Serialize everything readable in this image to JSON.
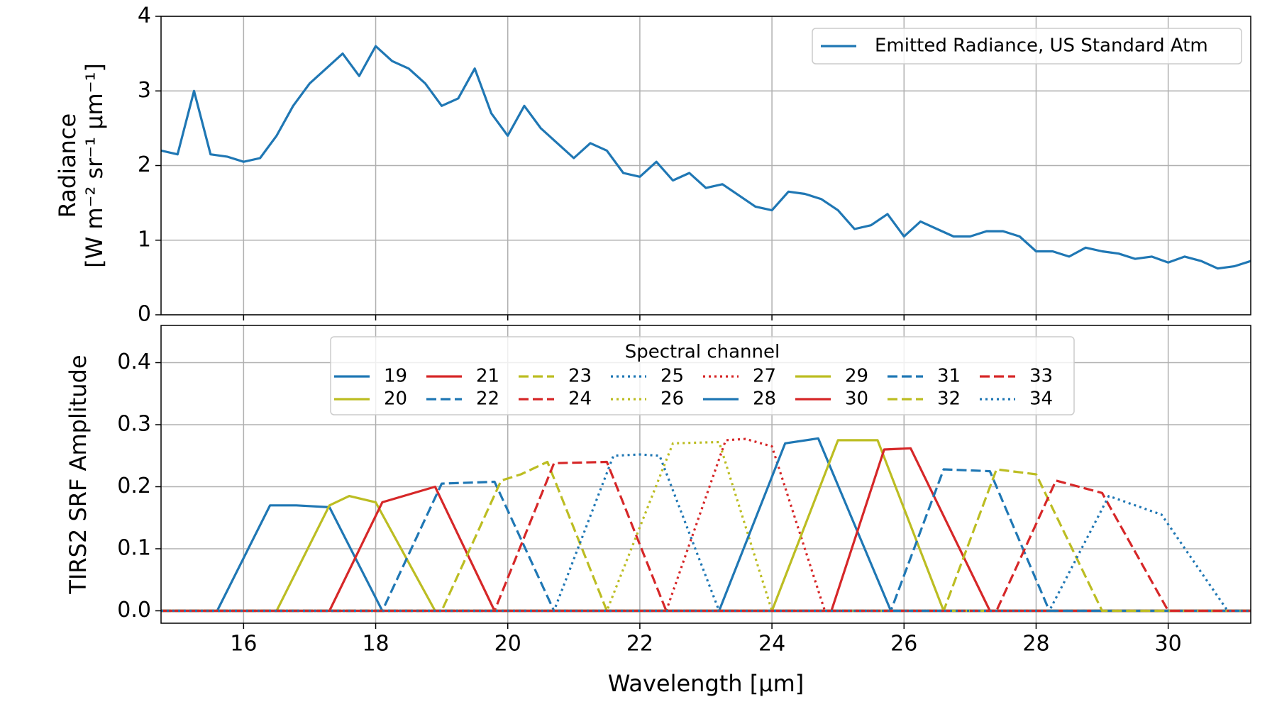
{
  "chart_data": [
    {
      "type": "line",
      "ylabel": [
        "Radiance",
        "[W m⁻² sr⁻¹ μm⁻¹]"
      ],
      "xlim": [
        14.75,
        31.25
      ],
      "xticks": [
        16,
        18,
        20,
        22,
        24,
        26,
        28,
        30
      ],
      "ylim": [
        0,
        4
      ],
      "yticks": [
        0,
        1,
        2,
        3,
        4
      ],
      "grid": true,
      "legend": "upper right",
      "x": [
        14.75,
        15.0,
        15.25,
        15.5,
        15.75,
        16.0,
        16.25,
        16.5,
        16.75,
        17.0,
        17.25,
        17.5,
        17.75,
        18.0,
        18.25,
        18.5,
        18.75,
        19.0,
        19.25,
        19.5,
        19.75,
        20.0,
        20.25,
        20.5,
        20.75,
        21.0,
        21.25,
        21.5,
        21.75,
        22.0,
        22.25,
        22.5,
        22.75,
        23.0,
        23.25,
        23.5,
        23.75,
        24.0,
        24.25,
        24.5,
        24.75,
        25.0,
        25.25,
        25.5,
        25.75,
        26.0,
        26.25,
        26.5,
        26.75,
        27.0,
        27.25,
        27.5,
        27.75,
        28.0,
        28.25,
        28.5,
        28.75,
        29.0,
        29.25,
        29.5,
        29.75,
        30.0,
        30.25,
        30.5,
        30.75,
        31.0,
        31.25
      ],
      "series": [
        {
          "name": "Emitted Radiance, US Standard Atm",
          "color": "#1f77b4",
          "linestyle": "solid",
          "values": [
            2.2,
            2.15,
            3.0,
            2.15,
            2.12,
            2.05,
            2.1,
            2.4,
            2.8,
            3.1,
            3.3,
            3.5,
            3.2,
            3.6,
            3.4,
            3.3,
            3.1,
            2.8,
            2.9,
            3.3,
            2.7,
            2.4,
            2.8,
            2.5,
            2.3,
            2.1,
            2.3,
            2.2,
            1.9,
            1.85,
            2.05,
            1.8,
            1.9,
            1.7,
            1.75,
            1.6,
            1.45,
            1.4,
            1.65,
            1.62,
            1.55,
            1.4,
            1.15,
            1.2,
            1.35,
            1.05,
            1.25,
            1.15,
            1.05,
            1.05,
            1.12,
            1.12,
            1.05,
            0.85,
            0.85,
            0.78,
            0.9,
            0.85,
            0.82,
            0.75,
            0.78,
            0.7,
            0.78,
            0.72,
            0.62,
            0.65,
            0.72
          ]
        }
      ]
    },
    {
      "type": "line",
      "xlabel": "Wavelength [μm]",
      "ylabel": [
        "TIRS2 SRF Amplitude"
      ],
      "xlim": [
        14.75,
        31.25
      ],
      "xticks": [
        16,
        18,
        20,
        22,
        24,
        26,
        28,
        30
      ],
      "ylim": [
        -0.02,
        0.46
      ],
      "yticks": [
        {
          "value": 0,
          "label": "0.0"
        },
        {
          "value": 0.1,
          "label": "0.1"
        },
        {
          "value": 0.2,
          "label": "0.2"
        },
        {
          "value": 0.3,
          "label": "0.3"
        },
        {
          "value": 0.4,
          "label": "0.4"
        }
      ],
      "grid": true,
      "legend": "upper center",
      "legend_title": "Spectral channel",
      "legend_rows": 2,
      "series": [
        {
          "name": "19",
          "color": "#1f77b4",
          "linestyle": "solid",
          "x": [
            14.75,
            15.6,
            16.4,
            16.8,
            17.3,
            18.1,
            31.25
          ],
          "values": [
            0,
            0,
            0.17,
            0.17,
            0.167,
            0,
            0
          ]
        },
        {
          "name": "20",
          "color": "#bcbd22",
          "linestyle": "solid",
          "x": [
            14.75,
            16.5,
            17.3,
            17.6,
            18.0,
            18.9,
            31.25
          ],
          "values": [
            0,
            0,
            0.17,
            0.185,
            0.175,
            0,
            0
          ]
        },
        {
          "name": "21",
          "color": "#d62728",
          "linestyle": "solid",
          "x": [
            14.75,
            17.3,
            18.1,
            18.9,
            19.8,
            31.25
          ],
          "values": [
            0,
            0,
            0.175,
            0.2,
            0,
            0
          ]
        },
        {
          "name": "22",
          "color": "#1f77b4",
          "linestyle": "dashed",
          "x": [
            14.75,
            18.1,
            19.0,
            19.8,
            20.7,
            31.25
          ],
          "values": [
            0,
            0,
            0.205,
            0.208,
            0,
            0
          ]
        },
        {
          "name": "23",
          "color": "#bcbd22",
          "linestyle": "dashed",
          "x": [
            14.75,
            19.0,
            19.9,
            20.2,
            20.6,
            21.5,
            31.25
          ],
          "values": [
            0,
            0,
            0.21,
            0.22,
            0.24,
            0,
            0
          ]
        },
        {
          "name": "24",
          "color": "#d62728",
          "linestyle": "dashed",
          "x": [
            14.75,
            19.8,
            20.7,
            21.5,
            22.4,
            31.25
          ],
          "values": [
            0,
            0,
            0.238,
            0.24,
            0,
            0
          ]
        },
        {
          "name": "25",
          "color": "#1f77b4",
          "linestyle": "dotted",
          "x": [
            14.75,
            20.7,
            21.6,
            22.0,
            22.3,
            23.2,
            31.25
          ],
          "values": [
            0,
            0,
            0.25,
            0.252,
            0.25,
            0,
            0
          ]
        },
        {
          "name": "26",
          "color": "#bcbd22",
          "linestyle": "dotted",
          "x": [
            14.75,
            21.5,
            22.5,
            23.2,
            24.0,
            31.25
          ],
          "values": [
            0,
            0,
            0.27,
            0.272,
            0,
            0
          ]
        },
        {
          "name": "27",
          "color": "#d62728",
          "linestyle": "dotted",
          "x": [
            14.75,
            22.4,
            23.3,
            23.6,
            24.0,
            24.8,
            31.25
          ],
          "values": [
            0,
            0,
            0.275,
            0.277,
            0.265,
            0,
            0
          ]
        },
        {
          "name": "28",
          "color": "#1f77b4",
          "linestyle": "solid",
          "x": [
            14.75,
            23.2,
            24.2,
            24.7,
            25.8,
            31.25
          ],
          "values": [
            0,
            0,
            0.27,
            0.278,
            0,
            0
          ]
        },
        {
          "name": "29",
          "color": "#bcbd22",
          "linestyle": "solid",
          "x": [
            14.75,
            24.0,
            25.0,
            25.6,
            26.6,
            31.25
          ],
          "values": [
            0,
            0,
            0.275,
            0.275,
            0,
            0
          ]
        },
        {
          "name": "30",
          "color": "#d62728",
          "linestyle": "solid",
          "x": [
            14.75,
            24.9,
            25.7,
            26.1,
            27.3,
            31.25
          ],
          "values": [
            0,
            0,
            0.26,
            0.262,
            0,
            0
          ]
        },
        {
          "name": "31",
          "color": "#1f77b4",
          "linestyle": "dashed",
          "x": [
            14.75,
            25.8,
            26.6,
            27.3,
            28.2,
            31.25
          ],
          "values": [
            0,
            0,
            0.228,
            0.225,
            0,
            0
          ]
        },
        {
          "name": "32",
          "color": "#bcbd22",
          "linestyle": "dashed",
          "x": [
            14.75,
            26.6,
            27.4,
            28.0,
            29.0,
            31.25
          ],
          "values": [
            0,
            0,
            0.228,
            0.22,
            0,
            0
          ]
        },
        {
          "name": "33",
          "color": "#d62728",
          "linestyle": "dashed",
          "x": [
            14.75,
            27.4,
            28.3,
            29.0,
            30.0,
            31.25
          ],
          "values": [
            0,
            0,
            0.21,
            0.19,
            0,
            0
          ]
        },
        {
          "name": "34",
          "color": "#1f77b4",
          "linestyle": "dotted",
          "x": [
            14.75,
            28.2,
            29.1,
            29.9,
            30.9,
            31.25
          ],
          "values": [
            0,
            0,
            0.185,
            0.155,
            0,
            0
          ]
        }
      ]
    }
  ]
}
